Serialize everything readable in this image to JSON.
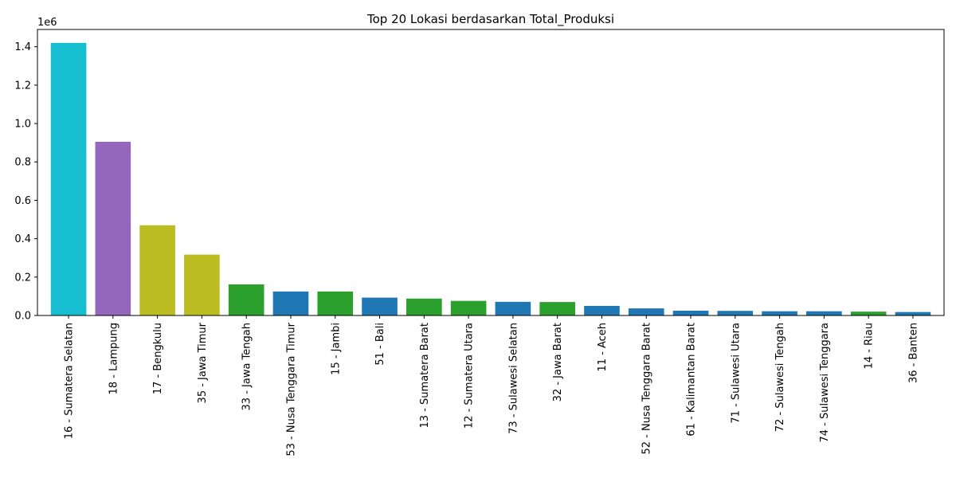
{
  "chart_data": {
    "type": "bar",
    "title": "Top 20 Lokasi berdasarkan Total_Produksi",
    "xlabel": "",
    "ylabel": "",
    "y_offset_label": "1e6",
    "y_scale": 1000000,
    "ylim": [
      0,
      1490000
    ],
    "y_ticks": [
      0,
      200000,
      400000,
      600000,
      800000,
      1000000,
      1200000,
      1400000
    ],
    "y_tick_labels": [
      "0.0",
      "0.2",
      "0.4",
      "0.6",
      "0.8",
      "1.0",
      "1.2",
      "1.4"
    ],
    "grid": false,
    "categories": [
      "16 - Sumatera Selatan",
      "18 - Lampung",
      "17 - Bengkulu",
      "35 - Jawa Timur",
      "33 - Jawa Tengah",
      "53 - Nusa Tenggara Timur",
      "15 - Jambi",
      "51 - Bali",
      "13 - Sumatera Barat",
      "12 - Sumatera Utara",
      "73 - Sulawesi Selatan",
      "32 - Jawa Barat",
      "11 - Aceh",
      "52 - Nusa Tenggara Barat",
      "61 - Kalimantan Barat",
      "71 - Sulawesi Utara",
      "72 - Sulawesi Tengah",
      "74 - Sulawesi Tenggara",
      "14 - Riau",
      "36 - Banten"
    ],
    "values": [
      1420000,
      905000,
      470000,
      317000,
      162000,
      125000,
      125000,
      93000,
      88000,
      76000,
      71000,
      70000,
      50000,
      37000,
      25000,
      24000,
      22000,
      22000,
      20000,
      18000
    ],
    "colors": [
      "#17becf",
      "#9467bd",
      "#bcbd22",
      "#bcbd22",
      "#2ca02c",
      "#1f77b4",
      "#2ca02c",
      "#1f77b4",
      "#2ca02c",
      "#2ca02c",
      "#1f77b4",
      "#2ca02c",
      "#1f77b4",
      "#1f77b4",
      "#1f77b4",
      "#1f77b4",
      "#1f77b4",
      "#1f77b4",
      "#2ca02c",
      "#1f77b4"
    ]
  }
}
